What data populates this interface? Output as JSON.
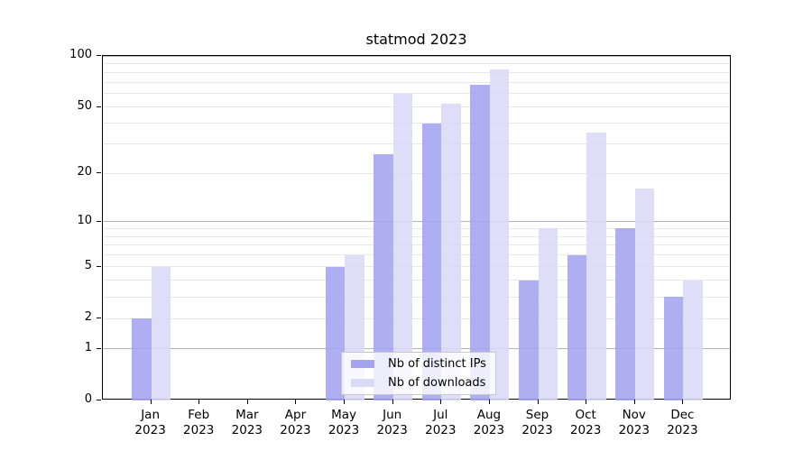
{
  "chart_data": {
    "type": "bar",
    "title": "statmod 2023",
    "categories": [
      "Jan",
      "Feb",
      "Mar",
      "Apr",
      "May",
      "Jun",
      "Jul",
      "Aug",
      "Sep",
      "Oct",
      "Nov",
      "Dec"
    ],
    "year_label": "2023",
    "series": [
      {
        "name": "Nb of distinct IPs",
        "color": "#a3a3f0",
        "values": [
          2,
          0,
          0,
          0,
          5,
          26,
          40,
          68,
          4,
          6,
          9,
          3
        ]
      },
      {
        "name": "Nb of downloads",
        "color": "#d9d9f8",
        "values": [
          5,
          0,
          0,
          0,
          6,
          60,
          52,
          83,
          9,
          35,
          16,
          4
        ]
      }
    ],
    "y_scale": "log1p",
    "ylim": [
      0,
      100
    ],
    "y_ticks": [
      0,
      1,
      2,
      5,
      10,
      20,
      50,
      100
    ],
    "major_gridlines": [
      1,
      10,
      100
    ],
    "minor_gridlines": [
      2,
      3,
      4,
      5,
      6,
      7,
      8,
      9,
      20,
      30,
      40,
      50,
      60,
      70,
      80,
      90
    ],
    "grid": true,
    "legend_position": "bottom-center",
    "colors": {
      "major_grid": "#b3b3b3",
      "minor_grid": "#e8e8e8",
      "axis": "#000000",
      "background": "#ffffff"
    }
  }
}
